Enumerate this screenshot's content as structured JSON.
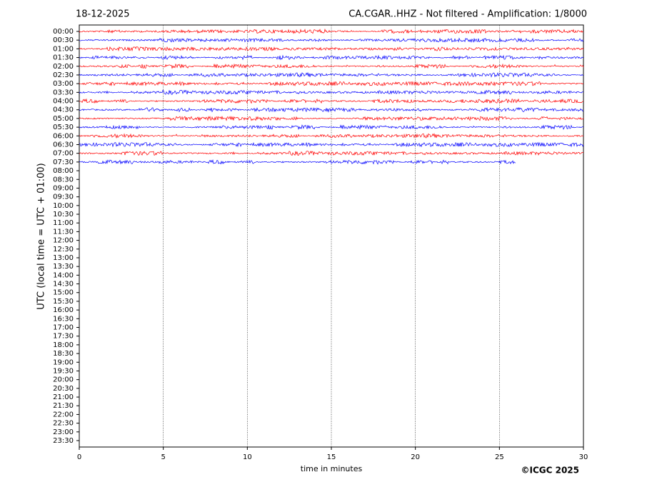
{
  "chart_data": {
    "type": "helicorder",
    "date": "18-12-2025",
    "title": "CA.CGAR..HHZ - Not filtered - Amplification: 1/8000",
    "xlabel": "time in minutes",
    "ylabel": "UTC (local time = UTC + 01:00)",
    "credit": "©ICGC 2025",
    "categories": [
      "00:00",
      "00:30",
      "01:00",
      "01:30",
      "02:00",
      "02:30",
      "03:00",
      "03:30",
      "04:00",
      "04:30",
      "05:00",
      "05:30",
      "06:00",
      "06:30",
      "07:00",
      "07:30",
      "08:00",
      "08:30",
      "09:00",
      "09:30",
      "10:00",
      "10:30",
      "11:00",
      "11:30",
      "12:00",
      "12:30",
      "13:00",
      "13:30",
      "14:00",
      "14:30",
      "15:00",
      "15:30",
      "16:00",
      "16:30",
      "17:00",
      "17:30",
      "18:00",
      "18:30",
      "19:00",
      "19:30",
      "20:00",
      "20:30",
      "21:00",
      "21:30",
      "22:00",
      "22:30",
      "23:00",
      "23:30"
    ],
    "xlim": [
      0,
      30
    ],
    "xticks": [
      0,
      5,
      10,
      15,
      20,
      25,
      30
    ],
    "grid": true,
    "colors": [
      "#ff0000",
      "#0000ff"
    ],
    "trace_ends": [
      30,
      30,
      30,
      30,
      30,
      30,
      30,
      30,
      30,
      30,
      30,
      30,
      30,
      30,
      30,
      26
    ]
  }
}
